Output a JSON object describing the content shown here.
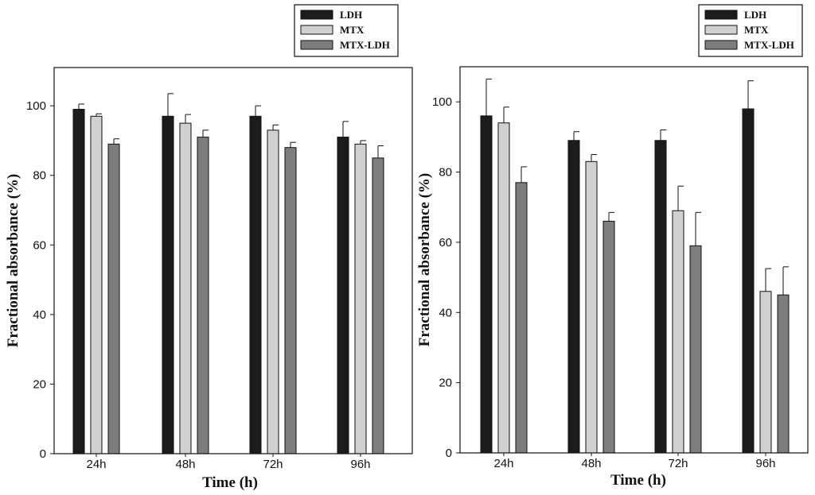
{
  "colors": {
    "LDH": "#1c1c1c",
    "MTX": "#d0d0d0",
    "MTX-LDH": "#7d7d7d",
    "axis": "#111111"
  },
  "chart_data": [
    {
      "type": "bar",
      "categories": [
        "24h",
        "48h",
        "72h",
        "96h"
      ],
      "series": [
        {
          "name": "LDH",
          "values": [
            99,
            97,
            97,
            91
          ],
          "errors": [
            1.5,
            6.5,
            3,
            4.5
          ]
        },
        {
          "name": "MTX",
          "values": [
            97,
            95,
            93,
            89
          ],
          "errors": [
            0.7,
            2.5,
            1.5,
            1
          ]
        },
        {
          "name": "MTX-LDH",
          "values": [
            89,
            91,
            88,
            85
          ],
          "errors": [
            1.5,
            2,
            1.5,
            3.5
          ]
        }
      ],
      "xlabel": "Time (h)",
      "ylabel": "Fractional absorbance (%)",
      "yticks": [
        "0",
        "20",
        "40",
        "60",
        "80",
        "100"
      ],
      "ylim": [
        0,
        111
      ],
      "legend": [
        "LDH",
        "MTX",
        "MTX-LDH"
      ],
      "legend_position": "top-right"
    },
    {
      "type": "bar",
      "categories": [
        "24h",
        "48h",
        "72h",
        "96h"
      ],
      "series": [
        {
          "name": "LDH",
          "values": [
            96,
            89,
            89,
            98
          ],
          "errors": [
            10.5,
            2.5,
            3,
            8
          ]
        },
        {
          "name": "MTX",
          "values": [
            94,
            83,
            69,
            46
          ],
          "errors": [
            4.5,
            2,
            7,
            6.5
          ]
        },
        {
          "name": "MTX-LDH",
          "values": [
            77,
            66,
            59,
            45
          ],
          "errors": [
            4.5,
            2.5,
            9.5,
            8
          ]
        }
      ],
      "xlabel": "Time (h)",
      "ylabel": "Fractional absorbance (%)",
      "yticks": [
        "0",
        "20",
        "40",
        "60",
        "80",
        "100"
      ],
      "ylim": [
        0,
        110
      ],
      "legend": [
        "LDH",
        "MTX",
        "MTX-LDH"
      ],
      "legend_position": "top-right"
    }
  ]
}
